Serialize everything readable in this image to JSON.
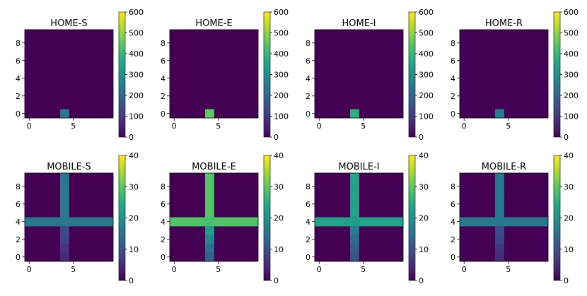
{
  "chart_data": [
    {
      "type": "heatmap",
      "title": "HOME-S",
      "grid_size": [
        10,
        10
      ],
      "xticks": [
        "0",
        "5"
      ],
      "yticks": [
        "0",
        "2",
        "4",
        "6",
        "8"
      ],
      "colorbar": {
        "range": [
          0,
          600
        ],
        "ticks": [
          "0",
          "100",
          "200",
          "300",
          "400",
          "500",
          "600"
        ],
        "colormap": "viridis"
      },
      "cells": [
        {
          "x": 4,
          "y": 0,
          "value": 240
        }
      ],
      "background_value": 0
    },
    {
      "type": "heatmap",
      "title": "HOME-E",
      "grid_size": [
        10,
        10
      ],
      "xticks": [
        "0",
        "5"
      ],
      "yticks": [
        "0",
        "2",
        "4",
        "6",
        "8"
      ],
      "colorbar": {
        "range": [
          0,
          600
        ],
        "ticks": [
          "0",
          "100",
          "200",
          "300",
          "400",
          "500",
          "600"
        ],
        "colormap": "viridis"
      },
      "cells": [
        {
          "x": 4,
          "y": 0,
          "value": 450
        }
      ],
      "background_value": 0
    },
    {
      "type": "heatmap",
      "title": "HOME-I",
      "grid_size": [
        10,
        10
      ],
      "xticks": [
        "0",
        "5"
      ],
      "yticks": [
        "0",
        "2",
        "4",
        "6",
        "8"
      ],
      "colorbar": {
        "range": [
          0,
          600
        ],
        "ticks": [
          "0",
          "100",
          "200",
          "300",
          "400",
          "500",
          "600"
        ],
        "colormap": "viridis"
      },
      "cells": [
        {
          "x": 4,
          "y": 0,
          "value": 380
        }
      ],
      "background_value": 0
    },
    {
      "type": "heatmap",
      "title": "HOME-R",
      "grid_size": [
        10,
        10
      ],
      "xticks": [
        "0",
        "5"
      ],
      "yticks": [
        "0",
        "2",
        "4",
        "6",
        "8"
      ],
      "colorbar": {
        "range": [
          0,
          600
        ],
        "ticks": [
          "0",
          "100",
          "200",
          "300",
          "400",
          "500",
          "600"
        ],
        "colormap": "viridis"
      },
      "cells": [
        {
          "x": 4,
          "y": 0,
          "value": 250
        }
      ],
      "background_value": 0
    },
    {
      "type": "heatmap",
      "title": "MOBILE-S",
      "grid_size": [
        10,
        10
      ],
      "xticks": [
        "0",
        "5"
      ],
      "yticks": [
        "0",
        "2",
        "4",
        "6",
        "8"
      ],
      "colorbar": {
        "range": [
          0,
          40
        ],
        "ticks": [
          "0",
          "10",
          "20",
          "30",
          "40"
        ],
        "colormap": "viridis"
      },
      "cross": {
        "x": 4,
        "y": 4
      },
      "cells": [
        {
          "x": 0,
          "y": 4,
          "value": 16
        },
        {
          "x": 1,
          "y": 4,
          "value": 16
        },
        {
          "x": 2,
          "y": 4,
          "value": 16
        },
        {
          "x": 3,
          "y": 4,
          "value": 16
        },
        {
          "x": 4,
          "y": 4,
          "value": 16
        },
        {
          "x": 5,
          "y": 4,
          "value": 16
        },
        {
          "x": 6,
          "y": 4,
          "value": 16
        },
        {
          "x": 7,
          "y": 4,
          "value": 16
        },
        {
          "x": 8,
          "y": 4,
          "value": 16
        },
        {
          "x": 9,
          "y": 4,
          "value": 16
        },
        {
          "x": 4,
          "y": 5,
          "value": 16
        },
        {
          "x": 4,
          "y": 6,
          "value": 16
        },
        {
          "x": 4,
          "y": 7,
          "value": 16
        },
        {
          "x": 4,
          "y": 8,
          "value": 16
        },
        {
          "x": 4,
          "y": 9,
          "value": 16
        },
        {
          "x": 4,
          "y": 3,
          "value": 9
        },
        {
          "x": 4,
          "y": 2,
          "value": 8
        },
        {
          "x": 4,
          "y": 1,
          "value": 6
        },
        {
          "x": 4,
          "y": 0,
          "value": 5
        }
      ],
      "background_value": 0
    },
    {
      "type": "heatmap",
      "title": "MOBILE-E",
      "grid_size": [
        10,
        10
      ],
      "xticks": [
        "0",
        "5"
      ],
      "yticks": [
        "0",
        "2",
        "4",
        "6",
        "8"
      ],
      "colorbar": {
        "range": [
          0,
          40
        ],
        "ticks": [
          "0",
          "10",
          "20",
          "30",
          "40"
        ],
        "colormap": "viridis"
      },
      "cross": {
        "x": 4,
        "y": 4
      },
      "cells": [
        {
          "x": 0,
          "y": 4,
          "value": 29
        },
        {
          "x": 1,
          "y": 4,
          "value": 29
        },
        {
          "x": 2,
          "y": 4,
          "value": 29
        },
        {
          "x": 3,
          "y": 4,
          "value": 29
        },
        {
          "x": 4,
          "y": 4,
          "value": 28
        },
        {
          "x": 5,
          "y": 4,
          "value": 29
        },
        {
          "x": 6,
          "y": 4,
          "value": 29
        },
        {
          "x": 7,
          "y": 4,
          "value": 29
        },
        {
          "x": 8,
          "y": 4,
          "value": 29
        },
        {
          "x": 9,
          "y": 4,
          "value": 29
        },
        {
          "x": 4,
          "y": 5,
          "value": 29
        },
        {
          "x": 4,
          "y": 6,
          "value": 29
        },
        {
          "x": 4,
          "y": 7,
          "value": 29
        },
        {
          "x": 4,
          "y": 8,
          "value": 29
        },
        {
          "x": 4,
          "y": 9,
          "value": 29
        },
        {
          "x": 4,
          "y": 3,
          "value": 22
        },
        {
          "x": 4,
          "y": 2,
          "value": 18
        },
        {
          "x": 4,
          "y": 1,
          "value": 15
        },
        {
          "x": 4,
          "y": 0,
          "value": 12
        }
      ],
      "background_value": 0
    },
    {
      "type": "heatmap",
      "title": "MOBILE-I",
      "grid_size": [
        10,
        10
      ],
      "xticks": [
        "0",
        "5"
      ],
      "yticks": [
        "0",
        "2",
        "4",
        "6",
        "8"
      ],
      "colorbar": {
        "range": [
          0,
          40
        ],
        "ticks": [
          "0",
          "10",
          "20",
          "30",
          "40"
        ],
        "colormap": "viridis"
      },
      "cross": {
        "x": 4,
        "y": 4
      },
      "cells": [
        {
          "x": 0,
          "y": 4,
          "value": 23
        },
        {
          "x": 1,
          "y": 4,
          "value": 23
        },
        {
          "x": 2,
          "y": 4,
          "value": 23
        },
        {
          "x": 3,
          "y": 4,
          "value": 23
        },
        {
          "x": 4,
          "y": 4,
          "value": 22
        },
        {
          "x": 5,
          "y": 4,
          "value": 23
        },
        {
          "x": 6,
          "y": 4,
          "value": 23
        },
        {
          "x": 7,
          "y": 4,
          "value": 23
        },
        {
          "x": 8,
          "y": 4,
          "value": 23
        },
        {
          "x": 9,
          "y": 4,
          "value": 23
        },
        {
          "x": 4,
          "y": 5,
          "value": 23
        },
        {
          "x": 4,
          "y": 6,
          "value": 23
        },
        {
          "x": 4,
          "y": 7,
          "value": 23
        },
        {
          "x": 4,
          "y": 8,
          "value": 23
        },
        {
          "x": 4,
          "y": 9,
          "value": 23
        },
        {
          "x": 4,
          "y": 3,
          "value": 17
        },
        {
          "x": 4,
          "y": 2,
          "value": 14
        },
        {
          "x": 4,
          "y": 1,
          "value": 12
        },
        {
          "x": 4,
          "y": 0,
          "value": 10
        }
      ],
      "background_value": 0
    },
    {
      "type": "heatmap",
      "title": "MOBILE-R",
      "grid_size": [
        10,
        10
      ],
      "xticks": [
        "0",
        "5"
      ],
      "yticks": [
        "0",
        "2",
        "4",
        "6",
        "8"
      ],
      "colorbar": {
        "range": [
          0,
          40
        ],
        "ticks": [
          "0",
          "10",
          "20",
          "30",
          "40"
        ],
        "colormap": "viridis"
      },
      "cross": {
        "x": 4,
        "y": 4
      },
      "cells": [
        {
          "x": 0,
          "y": 4,
          "value": 16
        },
        {
          "x": 1,
          "y": 4,
          "value": 16
        },
        {
          "x": 2,
          "y": 4,
          "value": 16
        },
        {
          "x": 3,
          "y": 4,
          "value": 16
        },
        {
          "x": 4,
          "y": 4,
          "value": 16
        },
        {
          "x": 5,
          "y": 4,
          "value": 16
        },
        {
          "x": 6,
          "y": 4,
          "value": 16
        },
        {
          "x": 7,
          "y": 4,
          "value": 16
        },
        {
          "x": 8,
          "y": 4,
          "value": 16
        },
        {
          "x": 9,
          "y": 4,
          "value": 16
        },
        {
          "x": 4,
          "y": 5,
          "value": 16
        },
        {
          "x": 4,
          "y": 6,
          "value": 16
        },
        {
          "x": 4,
          "y": 7,
          "value": 16
        },
        {
          "x": 4,
          "y": 8,
          "value": 16
        },
        {
          "x": 4,
          "y": 9,
          "value": 16
        },
        {
          "x": 4,
          "y": 3,
          "value": 9
        },
        {
          "x": 4,
          "y": 2,
          "value": 8
        },
        {
          "x": 4,
          "y": 1,
          "value": 6
        },
        {
          "x": 4,
          "y": 0,
          "value": 5
        }
      ],
      "background_value": 0
    }
  ]
}
